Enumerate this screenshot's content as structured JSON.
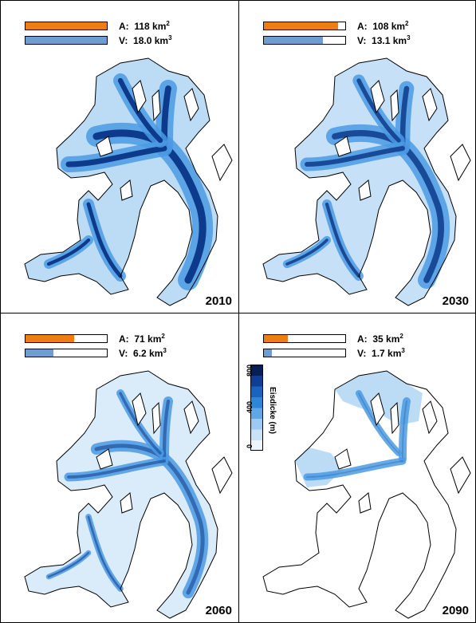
{
  "panels": [
    {
      "year": "2010",
      "area_label": "A:",
      "area_value": "118 km",
      "area_unit_sup": "2",
      "volume_label": "V:",
      "volume_value": "18.0 km",
      "volume_unit_sup": "3",
      "area_fraction": 1.0,
      "volume_fraction": 1.0,
      "ice_extent": 1.0
    },
    {
      "year": "2030",
      "area_label": "A:",
      "area_value": "108 km",
      "area_unit_sup": "2",
      "volume_label": "V:",
      "volume_value": "13.1 km",
      "volume_unit_sup": "3",
      "area_fraction": 0.915,
      "volume_fraction": 0.728,
      "ice_extent": 0.85
    },
    {
      "year": "2060",
      "area_label": "A:",
      "area_value": "71 km",
      "area_unit_sup": "2",
      "volume_label": "V:",
      "volume_value": "6.2 km",
      "volume_unit_sup": "3",
      "area_fraction": 0.6,
      "volume_fraction": 0.344,
      "ice_extent": 0.55
    },
    {
      "year": "2090",
      "area_label": "A:",
      "area_value": "35 km",
      "area_unit_sup": "2",
      "volume_label": "V:",
      "volume_value": "1.7 km",
      "volume_unit_sup": "3",
      "area_fraction": 0.297,
      "volume_fraction": 0.094,
      "ice_extent": 0.25
    }
  ],
  "legend": {
    "title": "Eisdicke (m)",
    "ticks": [
      "800",
      "400",
      "0"
    ],
    "colors": [
      "#eef6fd",
      "#c9e2f8",
      "#9ccaf2",
      "#5fa8e8",
      "#2f86d9",
      "#1a64c0",
      "#0f3f94",
      "#081f56"
    ]
  },
  "colors": {
    "area_bar": "#f07d14",
    "volume_bar": "#6e9dd2",
    "ice_light": "#bcdcf6",
    "ice_mid": "#4a9ae3",
    "ice_dark": "#0d3a8a"
  }
}
